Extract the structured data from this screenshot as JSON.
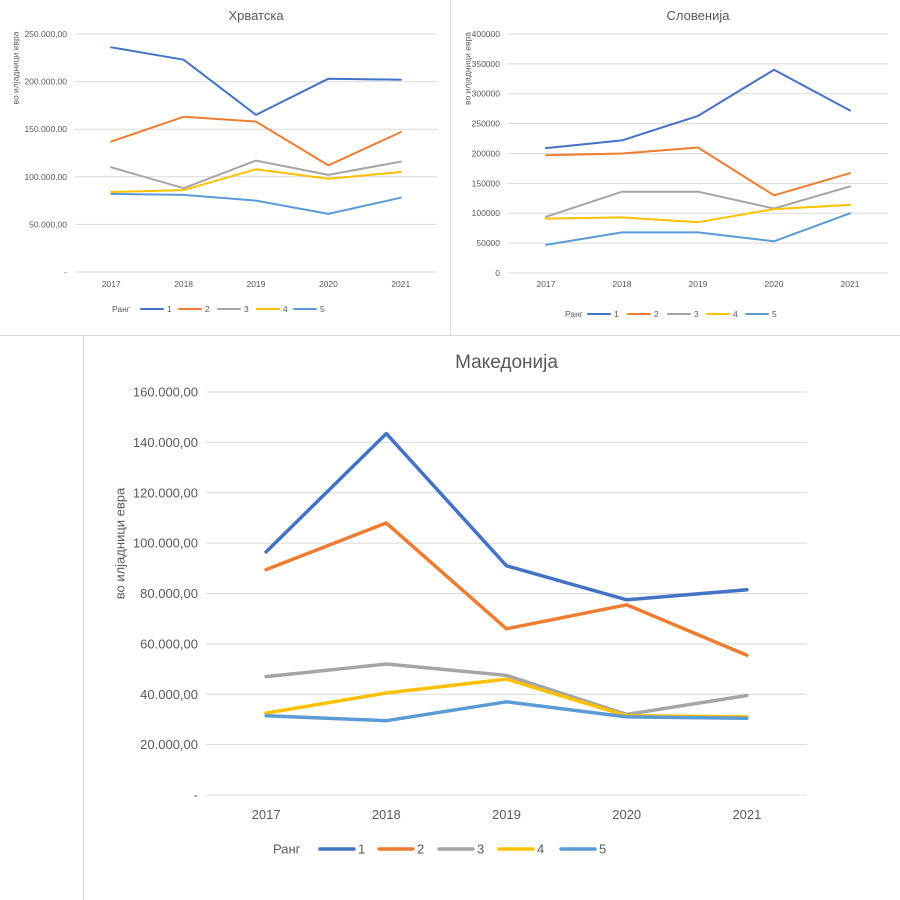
{
  "chart_data": [
    {
      "id": "hr",
      "type": "line",
      "title": "Хрватска",
      "ylabel": "во илјадници евра",
      "ylim": [
        0,
        250000
      ],
      "ytick_values": [
        0,
        50000,
        100000,
        150000,
        200000,
        250000
      ],
      "ytick_labels": [
        "-",
        "50.000,00",
        "100.000,00",
        "150.000,00",
        "200.000,00",
        "250.000,00"
      ],
      "categories": [
        "2017",
        "2018",
        "2019",
        "2020",
        "2021"
      ],
      "legend_title": "Ранг",
      "legend_position": "bottom-left",
      "grid": true,
      "series": [
        {
          "name": "1",
          "color": "#4472c4",
          "values": [
            236000,
            223000,
            165000,
            203000,
            202000
          ]
        },
        {
          "name": "2",
          "color": "#ed7d31",
          "values": [
            137000,
            163000,
            158000,
            112000,
            147000
          ]
        },
        {
          "name": "3",
          "color": "#a5a5a5",
          "values": [
            110000,
            88000,
            117000,
            102000,
            116000
          ]
        },
        {
          "name": "4",
          "color": "#ffc000",
          "values": [
            84000,
            86000,
            108000,
            98000,
            105000
          ]
        },
        {
          "name": "5",
          "color": "#5b9bd5",
          "values": [
            82000,
            81000,
            75000,
            61000,
            78000
          ]
        }
      ]
    },
    {
      "id": "si",
      "type": "line",
      "title": "Словенија",
      "ylabel": "во илјадници евра",
      "ylim": [
        0,
        400000
      ],
      "ytick_values": [
        0,
        50000,
        100000,
        150000,
        200000,
        250000,
        300000,
        350000,
        400000
      ],
      "ytick_labels": [
        "0",
        "50000",
        "100000",
        "150000",
        "200000",
        "250000",
        "300000",
        "350000",
        "400000"
      ],
      "categories": [
        "2017",
        "2018",
        "2019",
        "2020",
        "2021"
      ],
      "legend_title": "Ранг",
      "legend_position": "bottom-left",
      "grid": true,
      "series": [
        {
          "name": "1",
          "color": "#4472c4",
          "values": [
            209000,
            222000,
            263000,
            340000,
            272000
          ]
        },
        {
          "name": "2",
          "color": "#ed7d31",
          "values": [
            197000,
            200000,
            210000,
            130000,
            167000
          ]
        },
        {
          "name": "3",
          "color": "#a5a5a5",
          "values": [
            94000,
            136000,
            136000,
            108000,
            145000
          ]
        },
        {
          "name": "4",
          "color": "#ffc000",
          "values": [
            91000,
            93000,
            85000,
            107000,
            114000
          ]
        },
        {
          "name": "5",
          "color": "#5b9bd5",
          "values": [
            47000,
            68000,
            68000,
            53000,
            100000
          ]
        }
      ]
    },
    {
      "id": "mk",
      "type": "line",
      "title": "Македонија",
      "ylabel": "во илјадници евра",
      "ylim": [
        0,
        160000
      ],
      "ytick_values": [
        0,
        20000,
        40000,
        60000,
        80000,
        100000,
        120000,
        140000,
        160000
      ],
      "ytick_labels": [
        "-",
        "20.000,00",
        "40.000,00",
        "60.000,00",
        "80.000,00",
        "100.000,00",
        "120.000,00",
        "140.000,00",
        "160.000,00"
      ],
      "categories": [
        "2017",
        "2018",
        "2019",
        "2020",
        "2021"
      ],
      "legend_title": "Ранг",
      "legend_position": "bottom-left",
      "grid": true,
      "series": [
        {
          "name": "1",
          "color": "#4472c4",
          "values": [
            96500,
            143500,
            91000,
            77500,
            81500
          ]
        },
        {
          "name": "2",
          "color": "#ed7d31",
          "values": [
            89500,
            108000,
            66000,
            75500,
            55500
          ]
        },
        {
          "name": "3",
          "color": "#a5a5a5",
          "values": [
            47000,
            52000,
            47500,
            32000,
            39500
          ]
        },
        {
          "name": "4",
          "color": "#ffc000",
          "values": [
            32500,
            40500,
            46000,
            31500,
            31000
          ]
        },
        {
          "name": "5",
          "color": "#5b9bd5",
          "values": [
            31500,
            29500,
            37000,
            31000,
            30500
          ]
        }
      ]
    }
  ]
}
